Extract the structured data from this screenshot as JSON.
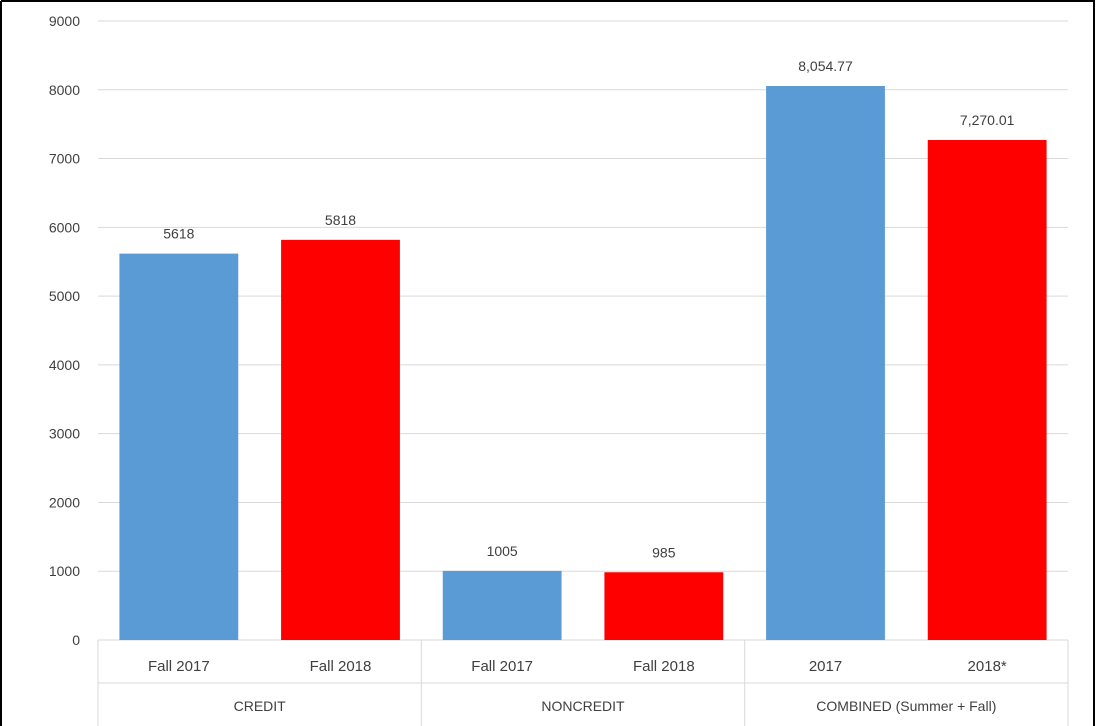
{
  "chart_data": {
    "type": "bar",
    "title": "",
    "xlabel": "",
    "ylabel": "",
    "ylim": [
      0,
      9000
    ],
    "yticks": [
      0,
      1000,
      2000,
      3000,
      4000,
      5000,
      6000,
      7000,
      8000,
      9000
    ],
    "grid": true,
    "legend": "none",
    "groups": [
      {
        "label": "CREDIT",
        "categories": [
          "Fall 2017",
          "Fall 2018"
        ]
      },
      {
        "label": "NONCREDIT",
        "categories": [
          "Fall 2017",
          "Fall 2018"
        ]
      },
      {
        "label": "COMBINED (Summer + Fall)",
        "categories": [
          "2017",
          "2018*"
        ]
      }
    ],
    "bars": [
      {
        "group": "CREDIT",
        "category": "Fall 2017",
        "value": 5618,
        "label": "5618",
        "color": "#5b9bd5"
      },
      {
        "group": "CREDIT",
        "category": "Fall 2018",
        "value": 5818,
        "label": "5818",
        "color": "#ff0000"
      },
      {
        "group": "NONCREDIT",
        "category": "Fall 2017",
        "value": 1005,
        "label": "1005",
        "color": "#5b9bd5"
      },
      {
        "group": "NONCREDIT",
        "category": "Fall 2018",
        "value": 985,
        "label": "985",
        "color": "#ff0000"
      },
      {
        "group": "COMBINED (Summer + Fall)",
        "category": "2017",
        "value": 8054.77,
        "label": "8,054.77",
        "color": "#5b9bd5"
      },
      {
        "group": "COMBINED (Summer + Fall)",
        "category": "2018*",
        "value": 7270.01,
        "label": "7,270.01",
        "color": "#ff0000"
      }
    ],
    "colors": {
      "blue": "#5b9bd5",
      "red": "#ff0000",
      "gridline": "#d9d9d9",
      "axis_text": "#404040"
    }
  }
}
